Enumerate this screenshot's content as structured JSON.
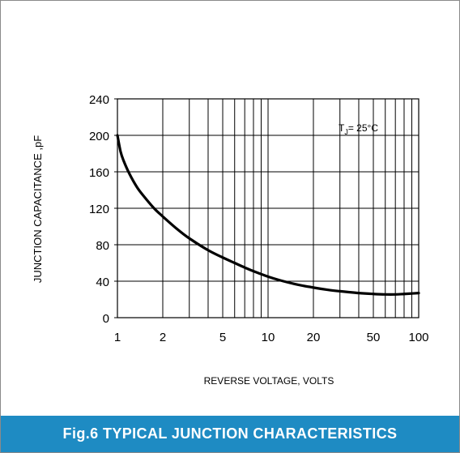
{
  "chart_data": {
    "type": "line",
    "title": "",
    "xlabel": "REVERSE VOLTAGE, VOLTS",
    "ylabel": "JUNCTION CAPACITANCE ,pF",
    "xscale": "log",
    "xlim": [
      1,
      100
    ],
    "ylim": [
      0,
      240
    ],
    "x_ticks": [
      1,
      2,
      5,
      10,
      20,
      50,
      100
    ],
    "y_ticks": [
      0,
      40,
      80,
      120,
      160,
      200,
      240
    ],
    "grid": true,
    "annotation": {
      "main": "T",
      "sub": "J",
      "rest": "= 25°C"
    },
    "series": [
      {
        "x": [
          1,
          1.05,
          1.1,
          1.2,
          1.35,
          1.5,
          1.75,
          2,
          2.5,
          3,
          4,
          5,
          6,
          7,
          8,
          10,
          12,
          15,
          20,
          25,
          30,
          40,
          50,
          60,
          70,
          80,
          100
        ],
        "y": [
          200,
          182,
          172,
          158,
          143,
          133,
          120,
          111,
          97,
          87,
          74,
          66,
          60,
          55,
          51,
          45,
          41,
          37,
          33,
          30.5,
          29,
          27,
          26,
          25.5,
          25.5,
          26,
          27
        ],
        "color": "#000000"
      }
    ]
  },
  "caption": "Fig.6 TYPICAL JUNCTION CHARACTERISTICS"
}
